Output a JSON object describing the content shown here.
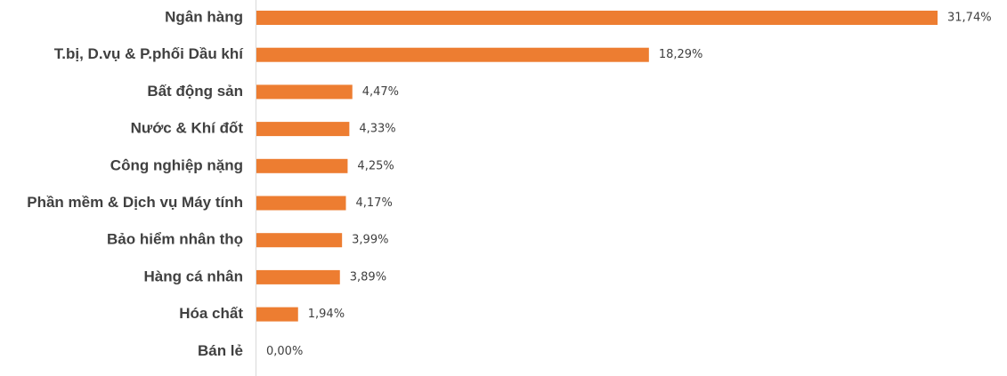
{
  "chart_data": {
    "type": "bar",
    "orientation": "horizontal",
    "title": "",
    "xlabel": "",
    "ylabel": "",
    "categories": [
      "Ngân hàng",
      "T.bị, D.vụ & P.phối Dầu khí",
      "Bất động sản",
      "Nước & Khí đốt",
      "Công nghiệp nặng",
      "Phần mềm & Dịch vụ Máy tính",
      "Bảo hiểm nhân thọ",
      "Hàng cá nhân",
      "Hóa chất",
      "Bán lẻ"
    ],
    "values": [
      31.74,
      18.29,
      4.47,
      4.33,
      4.25,
      4.17,
      3.99,
      3.89,
      1.94,
      0.0
    ],
    "value_labels": [
      "31,74%",
      "18,29%",
      "4,47%",
      "4,33%",
      "4,25%",
      "4,17%",
      "3,99%",
      "3,89%",
      "1,94%",
      "0,00%"
    ],
    "xlim": [
      0,
      31.74
    ],
    "grid": false,
    "legend": "none",
    "bar_color": "#ED7D31",
    "text_color": "#404040",
    "axis_color": "#D9D9D9"
  }
}
